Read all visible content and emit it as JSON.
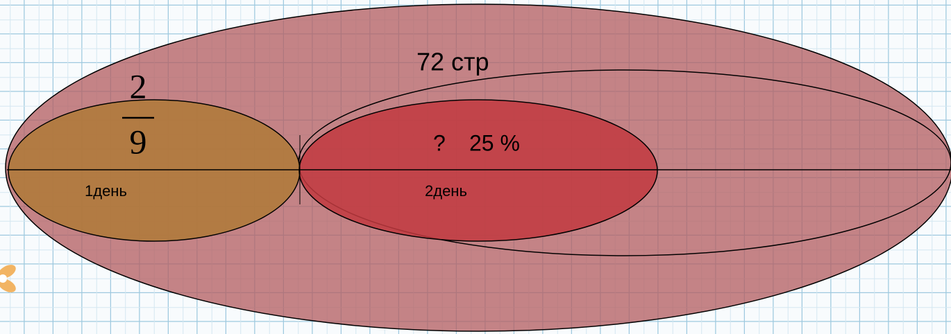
{
  "total_label": "72 стр",
  "fraction": {
    "numerator": "2",
    "denominator": "9"
  },
  "day1_label": "1день",
  "day2_label": "2день",
  "question_label": "?",
  "percent_label": "25 %"
}
